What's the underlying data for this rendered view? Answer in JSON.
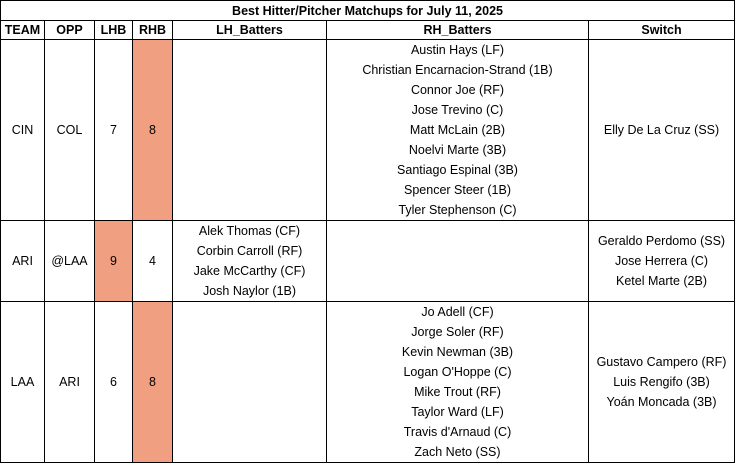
{
  "title": "Best Hitter/Pitcher Matchups for July 11, 2025",
  "headers": [
    "TEAM",
    "OPP",
    "LHB",
    "RHB",
    "LH_Batters",
    "RH_Batters",
    "Switch"
  ],
  "highlight_color": "#f0a080",
  "rows": [
    {
      "team": "CIN",
      "opp": "COL",
      "lhb": "7",
      "rhb": "8",
      "highlight": "rhb",
      "lh_batters": [],
      "rh_batters": [
        "Austin Hays (LF)",
        "Christian Encarnacion-Strand (1B)",
        "Connor Joe (RF)",
        "Jose Trevino (C)",
        "Matt McLain (2B)",
        "Noelvi Marte (3B)",
        "Santiago Espinal (3B)",
        "Spencer Steer (1B)",
        "Tyler Stephenson (C)"
      ],
      "switch": [
        "Elly De La Cruz (SS)"
      ]
    },
    {
      "team": "ARI",
      "opp": "@LAA",
      "lhb": "9",
      "rhb": "4",
      "highlight": "lhb",
      "lh_batters": [
        "Alek Thomas (CF)",
        "Corbin Carroll (RF)",
        "Jake McCarthy (CF)",
        "Josh Naylor (1B)"
      ],
      "rh_batters": [],
      "switch": [
        "Geraldo Perdomo (SS)",
        "Jose Herrera (C)",
        "Ketel Marte (2B)"
      ]
    },
    {
      "team": "LAA",
      "opp": "ARI",
      "lhb": "6",
      "rhb": "8",
      "highlight": "rhb",
      "lh_batters": [],
      "rh_batters": [
        "Jo Adell (CF)",
        "Jorge Soler (RF)",
        "Kevin Newman (3B)",
        "Logan O'Hoppe (C)",
        "Mike Trout (RF)",
        "Taylor Ward (LF)",
        "Travis d'Arnaud (C)",
        "Zach Neto (SS)"
      ],
      "switch": [
        "Gustavo Campero (RF)",
        "Luis Rengifo (3B)",
        "Yoán Moncada (3B)"
      ]
    }
  ]
}
